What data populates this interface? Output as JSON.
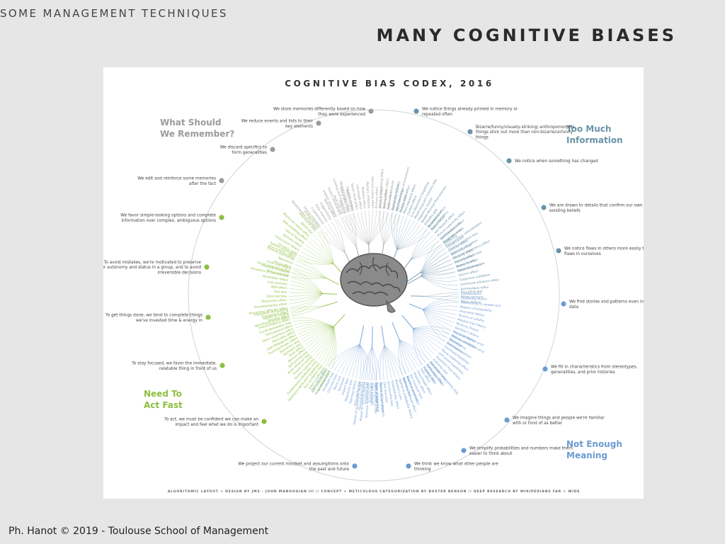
{
  "header": {
    "section_title": "SOME MANAGEMENT TECHNIQUES",
    "slide_title": "MANY COGNITIVE BIASES"
  },
  "poster": {
    "title": "COGNITIVE BIAS CODEX, 2016",
    "credit": "ALGORITHMIC LAYOUT + DESIGN BY JM3 - JOHN MANOOGIAN III // CONCEPT + METICULOUS CATEGORIZATION BY BUSTER BENSON // DEEP RESEARCH BY WIKIPEDIANS FAR + WIDE",
    "colors": {
      "remember": "#9b9b9b",
      "information": "#6a93a8",
      "meaning": "#6c9bd2",
      "act": "#8dbf3f"
    },
    "quadrants": {
      "remember": "What Should We Remember?",
      "information": "Too Much Information",
      "meaning": "Not Enough Meaning",
      "act": "Need To Act Fast"
    },
    "remember_labels": [
      "We store memories differently based on how they were experienced",
      "We reduce events and lists to their key elements",
      "We discard specifics to form generalities",
      "We edit and reinforce some memories after the fact"
    ],
    "information_labels": [
      "We notice things already primed in memory or repeated often",
      "Bizarre/funny/visually-striking/ anthropomorphic things stick out more than non-bizarre/unfunny things",
      "We notice when something has changed",
      "We are drawn to details that confirm our own existing beliefs",
      "We notice flaws in others more easily than flaws in ourselves"
    ],
    "meaning_labels": [
      "We find stories and patterns even in sparse data",
      "We fill in characteristics from stereotypes, generalities, and prior histories",
      "We imagine things and people we're familiar with or fond of as better",
      "We simplify probabilities and numbers make them easier to think about",
      "We think we know what other people are thinking",
      "We project our current mindset and assumptions onto the past and future"
    ],
    "act_labels": [
      "We favor simple-looking options and complete information over complex, ambiguous options",
      "To avoid mistakes, we're motivated to preserve our autonomy and status in a group, and to avoid irreversible decisions",
      "To get things done, we tend to complete things we've invested time & energy in",
      "To stay focused, we favor the immediate, relatable thing in front of us",
      "To act, we must be confident we can make an impact and feel what we do is important"
    ],
    "bias_terms": {
      "info_1": [
        "Confirmation bias",
        "Congruence bias",
        "Post-purchase rationalization",
        "Choice-supportive bias",
        "Selective perception",
        "Observer-expectancy effect",
        "Experimenter's bias",
        "Observer effect",
        "Expectation bias",
        "Ostrich effect",
        "Subjective validation",
        "Continued influence effect",
        "Semmelweis reflex"
      ],
      "info_2": [
        "Bias blind spot",
        "Naive cynicism",
        "Naive realism"
      ],
      "meaning_1": [
        "Confabulation",
        "Clustering illusion",
        "Insensitivity to sample size",
        "Neglect of probability",
        "Anecdotal fallacy",
        "Illusion of validity",
        "Masked man fallacy",
        "Recency illusion",
        "Gambler's fallacy",
        "Hot-hand fallacy",
        "Illusory correlation",
        "Pareidolia",
        "Anthropomorphism"
      ],
      "meaning_2": [
        "Group attribution error",
        "Ultimate attribution error",
        "Stereotyping",
        "Essentialism",
        "Functional fixedness",
        "Moral credential effect",
        "Just-world hypothesis",
        "Argument from fallacy",
        "Authority bias",
        "Automation bias",
        "Bandwagon effect",
        "Placebo effect"
      ],
      "act_1": [
        "Less-is-better effect",
        "Occam's razor",
        "Conjunction fallacy",
        "Delmore effect",
        "Law of Triviality",
        "Bike-shedding effect",
        "Rhyme as reason effect",
        "Belief bias",
        "Information bias",
        "Ambiguity bias"
      ],
      "act_2": [
        "Status quo bias",
        "Social comparison bias",
        "Decoy effect",
        "Reactance",
        "Reverse psychology",
        "System justification"
      ],
      "act_3": [
        "Backfire effect",
        "Endowment effect",
        "Processing difficulty effect",
        "Pseudocertainty effect",
        "Disposition effect",
        "Zero-risk bias",
        "Unit bias",
        "IKEA effect",
        "Loss aversion",
        "Generation effect",
        "Escalation of commitment",
        "Irrational escalation",
        "Sunk cost fallacy"
      ],
      "act_4": [
        "Identifiable victim effect",
        "Appeal to novelty",
        "Hyperbolic discounting"
      ],
      "act_5": [
        "Peltzman effect",
        "Risk compensation",
        "Effort justification",
        "Trait ascription bias",
        "Defensive attribution hypothesis",
        "Fundamental attribution error",
        "Illusory superiority",
        "Illusion of control",
        "Actor-observer bias",
        "Self-serving bias",
        "Barnum effect",
        "Forer effect",
        "Optimism bias",
        "Egocentric bias",
        "Dunning-Kruger effect",
        "Lake Wobegone effect",
        "Hard-easy effect",
        "False consensus effect",
        "Third-person effect",
        "Social desirability bias",
        "Overconfidence effect"
      ],
      "meaning_3": [
        "Self-consistency bias",
        "Restraint bias",
        "Projection bias",
        "Pro-innovation bias",
        "Time-saving bias",
        "Planning fallacy",
        "Pessimism bias",
        "Impact bias",
        "Declinism",
        "Moral luck",
        "Outcome bias",
        "Hindsight bias",
        "Rosy retrospection",
        "Telescoping effect"
      ],
      "meaning_4": [
        "Illusion of transparency",
        "Curse of knowledge",
        "Spotlight effect",
        "Extrinsic incentive error",
        "Illusion of external agency",
        "Illusion of asymmetric insight"
      ],
      "meaning_5": [
        "Mental accounting",
        "Normalcy bias",
        "Appeal to probability fallacy",
        "Murphy's Law",
        "Subadditivity effect",
        "Survivorship bias",
        "Zero sum bias",
        "Denomination effect",
        "Magic number 7+-2"
      ],
      "meaning_6": [
        "Out-group homogeneity bias",
        "Cross-race effect",
        "In-group bias",
        "Halo effect",
        "Cheerleader effect",
        "Positivity effect",
        "Not invented here",
        "Reactive devaluation",
        "Well-traveled road effect"
      ],
      "rem_1": [
        "Misattribution of memory",
        "Source confusion",
        "Cryptomnesia",
        "False memory",
        "Suggestibility",
        "Spacing effect"
      ],
      "rem_2": [
        "Implicit stereotypes",
        "Implicit associations",
        "Prejudice",
        "Fading affect bias",
        "Negativity bias"
      ],
      "rem_3": [
        "Peak-end rule",
        "Leveling and sharpening",
        "Misinformation effect",
        "Duration neglect",
        "Serial recall effect",
        "List-length effect",
        "Modality effect",
        "Memory inhibition",
        "Part-list cueing effect",
        "Primacy effect",
        "Recency effect",
        "Serial position effect",
        "Suffix effect"
      ],
      "rem_4": [
        "Levels of processing effect",
        "Testing effect",
        "Absent-mindedness",
        "Next-in-line effect",
        "Tip of the tongue phenomenon",
        "Google effect"
      ],
      "info_3": [
        "Availability heuristic",
        "Attentional bias",
        "Illusory truth effect",
        "Mere exposure effect",
        "Context effect",
        "Cue-dependent forgetting",
        "Mood-congruent memory bias",
        "Frequency illusion",
        "Baader-Meinhof Phenomenon",
        "Empathy gap",
        "Omission bias",
        "Base rate fallacy"
      ],
      "info_4": [
        "Bizarreness effect",
        "Humor effect",
        "Von Restorff effect",
        "Picture superiority effect",
        "Self-relevance effect",
        "Negativity bias"
      ],
      "info_5": [
        "Anchoring",
        "Conservatism",
        "Contrast effect",
        "Distinction bias",
        "Focusing effect",
        "Framing effect",
        "Money illusion",
        "Weber-Fechner law"
      ]
    }
  },
  "footer": {
    "credit": "Ph. Hanot © 2019  -  Toulouse School of Management"
  }
}
